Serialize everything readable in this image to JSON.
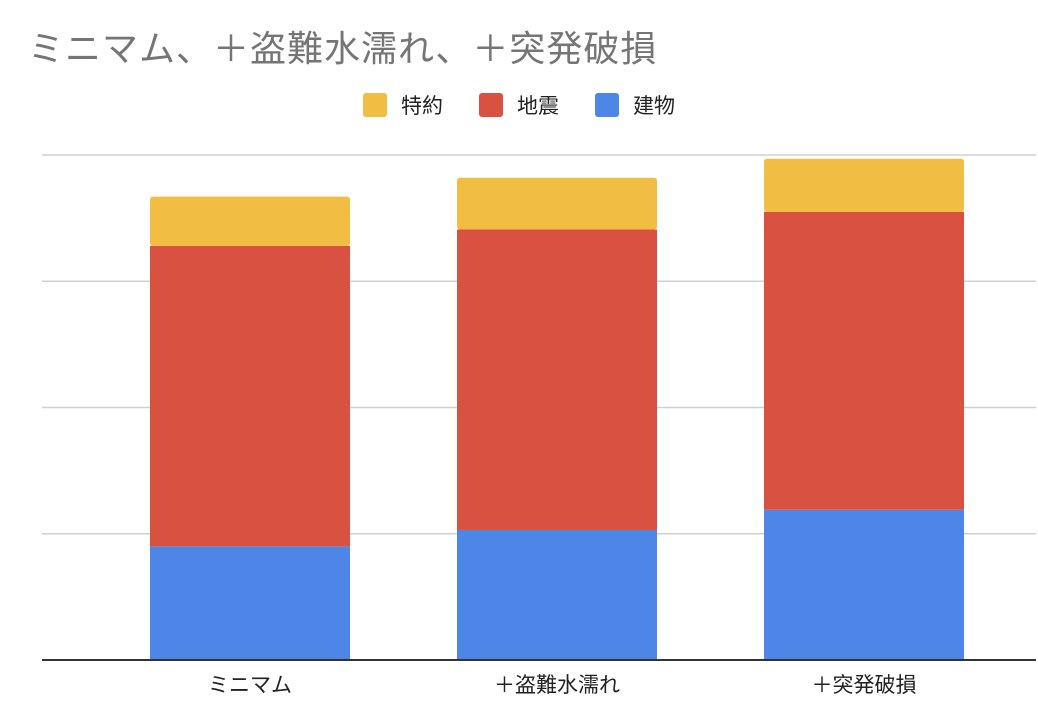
{
  "chart_data": {
    "type": "bar",
    "stacked": true,
    "title": "ミニマム、＋盗難水濡れ、＋突発破損",
    "categories": [
      "ミニマム",
      "＋盗難水濡れ",
      "＋突発破損"
    ],
    "series": [
      {
        "name": "建物",
        "color": "#4e86e8",
        "values": [
          0.9,
          1.03,
          1.19
        ]
      },
      {
        "name": "地震",
        "color": "#d95140",
        "values": [
          2.38,
          2.38,
          2.36
        ]
      },
      {
        "name": "特約",
        "color": "#f1bd42",
        "values": [
          0.39,
          0.41,
          0.42
        ]
      }
    ],
    "ylim": [
      0,
      4
    ],
    "y_ticks_visible": false,
    "grid": true,
    "legend_position": "top-center",
    "xlabel": "",
    "ylabel": ""
  }
}
